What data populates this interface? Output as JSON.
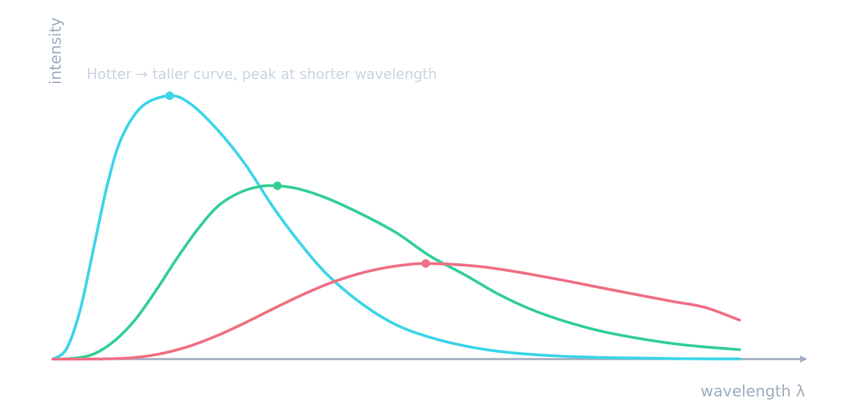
{
  "chart_data": {
    "type": "line",
    "xlabel": "wavelength λ",
    "ylabel": "intensity",
    "annotation": "Hotter → taller curve, peak at shorter wavelength",
    "xlim": [
      0,
      1
    ],
    "ylim": [
      0,
      1
    ],
    "grid": false,
    "axis_color": "#a0aec0",
    "series": [
      {
        "color": "#3dd5e8",
        "peak": {
          "x": 0.17,
          "y": 1.0
        },
        "points": [
          [
            0.0,
            0.0
          ],
          [
            0.02,
            0.04
          ],
          [
            0.04,
            0.19
          ],
          [
            0.06,
            0.43
          ],
          [
            0.08,
            0.67
          ],
          [
            0.1,
            0.84
          ],
          [
            0.13,
            0.96
          ],
          [
            0.17,
            1.0
          ],
          [
            0.2,
            0.97
          ],
          [
            0.24,
            0.87
          ],
          [
            0.28,
            0.74
          ],
          [
            0.32,
            0.58
          ],
          [
            0.36,
            0.44
          ],
          [
            0.4,
            0.32
          ],
          [
            0.45,
            0.21
          ],
          [
            0.5,
            0.13
          ],
          [
            0.55,
            0.082
          ],
          [
            0.6,
            0.05
          ],
          [
            0.65,
            0.029
          ],
          [
            0.7,
            0.017
          ],
          [
            0.75,
            0.01
          ],
          [
            0.8,
            0.006
          ],
          [
            0.85,
            0.004
          ],
          [
            0.9,
            0.002
          ],
          [
            0.95,
            0.001
          ],
          [
            1.0,
            0.0005
          ]
        ]
      },
      {
        "color": "#34cf94",
        "peak": {
          "x": 0.327,
          "y": 0.658
        },
        "points": [
          [
            0.0,
            0.0
          ],
          [
            0.03,
            0.003
          ],
          [
            0.06,
            0.02
          ],
          [
            0.09,
            0.07
          ],
          [
            0.12,
            0.15
          ],
          [
            0.15,
            0.26
          ],
          [
            0.18,
            0.38
          ],
          [
            0.21,
            0.49
          ],
          [
            0.24,
            0.58
          ],
          [
            0.27,
            0.63
          ],
          [
            0.3,
            0.655
          ],
          [
            0.327,
            0.658
          ],
          [
            0.36,
            0.645
          ],
          [
            0.4,
            0.61
          ],
          [
            0.45,
            0.55
          ],
          [
            0.5,
            0.48
          ],
          [
            0.55,
            0.39
          ],
          [
            0.6,
            0.32
          ],
          [
            0.65,
            0.245
          ],
          [
            0.7,
            0.185
          ],
          [
            0.75,
            0.14
          ],
          [
            0.8,
            0.105
          ],
          [
            0.85,
            0.08
          ],
          [
            0.9,
            0.06
          ],
          [
            0.95,
            0.046
          ],
          [
            1.0,
            0.036
          ]
        ]
      },
      {
        "color": "#f07084",
        "peak": {
          "x": 0.543,
          "y": 0.363
        },
        "points": [
          [
            0.0,
            0.0
          ],
          [
            0.08,
            0.001
          ],
          [
            0.12,
            0.006
          ],
          [
            0.16,
            0.022
          ],
          [
            0.2,
            0.05
          ],
          [
            0.24,
            0.09
          ],
          [
            0.28,
            0.138
          ],
          [
            0.32,
            0.19
          ],
          [
            0.36,
            0.24
          ],
          [
            0.4,
            0.285
          ],
          [
            0.44,
            0.32
          ],
          [
            0.48,
            0.345
          ],
          [
            0.52,
            0.36
          ],
          [
            0.543,
            0.363
          ],
          [
            0.58,
            0.36
          ],
          [
            0.62,
            0.352
          ],
          [
            0.66,
            0.338
          ],
          [
            0.7,
            0.32
          ],
          [
            0.75,
            0.296
          ],
          [
            0.8,
            0.27
          ],
          [
            0.85,
            0.245
          ],
          [
            0.9,
            0.22
          ],
          [
            0.95,
            0.196
          ],
          [
            1.0,
            0.148
          ]
        ]
      }
    ]
  }
}
